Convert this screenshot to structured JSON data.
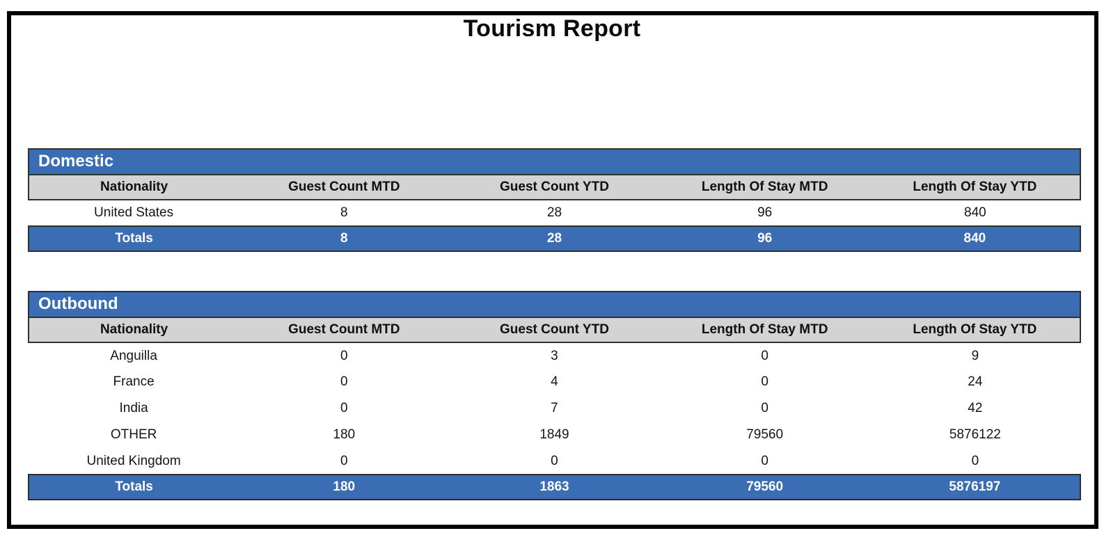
{
  "page": {
    "title": "Tourism Report"
  },
  "colors": {
    "accent_blue": "#3a6db3",
    "header_gray": "#d3d3d3",
    "border_dark": "#2f2f2f",
    "frame_black": "#000000"
  },
  "columns": [
    "Nationality",
    "Guest Count MTD",
    "Guest Count YTD",
    "Length Of Stay MTD",
    "Length Of Stay YTD"
  ],
  "tables": [
    {
      "section": "Domestic",
      "rows": [
        [
          "United States",
          "8",
          "28",
          "96",
          "840"
        ]
      ],
      "totals": [
        "Totals",
        "8",
        "28",
        "96",
        "840"
      ]
    },
    {
      "section": "Outbound",
      "rows": [
        [
          "Anguilla",
          "0",
          "3",
          "0",
          "9"
        ],
        [
          "France",
          "0",
          "4",
          "0",
          "24"
        ],
        [
          "India",
          "0",
          "7",
          "0",
          "42"
        ],
        [
          "OTHER",
          "180",
          "1849",
          "79560",
          "5876122"
        ],
        [
          "United Kingdom",
          "0",
          "0",
          "0",
          "0"
        ]
      ],
      "totals": [
        "Totals",
        "180",
        "1863",
        "79560",
        "5876197"
      ]
    }
  ]
}
